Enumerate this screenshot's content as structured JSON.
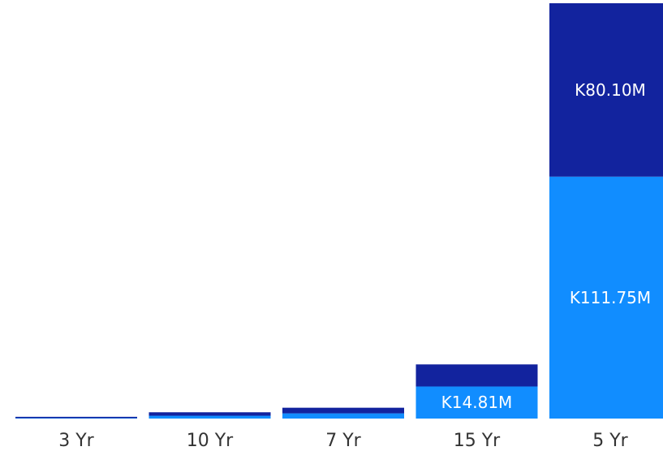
{
  "chart_data": {
    "type": "bar",
    "stacked": true,
    "categories": [
      "3 Yr",
      "10 Yr",
      "7 Yr",
      "15 Yr",
      "5 Yr"
    ],
    "series": [
      {
        "values": [
          0.2,
          1.3,
          2.4,
          14.81,
          111.75
        ],
        "color": "#118DFF",
        "data_labels": [
          "",
          "",
          "",
          "K14.81M",
          "K111.75M"
        ]
      },
      {
        "values": [
          0.6,
          1.6,
          2.6,
          10.2,
          80.1
        ],
        "color": "#12239E",
        "data_labels": [
          "",
          "",
          "",
          "",
          "K80.10M"
        ]
      }
    ],
    "unit": "M",
    "ylim": [
      0,
      191.85
    ],
    "grid": false,
    "legend": "none"
  }
}
